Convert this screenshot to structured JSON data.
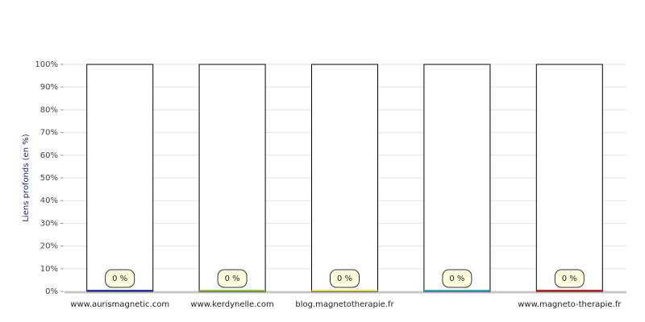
{
  "chart_data": {
    "type": "bar",
    "y_label": "Liens profonds (en %)",
    "categories": [
      "www.aurismagnetic.com",
      "www.kerdynelle.com",
      "blog.magnetotherapie.fr",
      null,
      "www.magneto-therapie.fr"
    ],
    "values": [
      0,
      0,
      0,
      0,
      0
    ],
    "value_labels": [
      "0 %",
      "0 %",
      "0 %",
      "0 %",
      "0 %"
    ],
    "colors": [
      "#1f3fa8",
      "#8fbf3f",
      "#e8d84a",
      "#2aa8c8",
      "#d01818"
    ],
    "ylim": [
      0,
      100
    ],
    "yticks": [
      {
        "value": 0,
        "label": "0%"
      },
      {
        "value": 10,
        "label": "10%"
      },
      {
        "value": 20,
        "label": "20%"
      },
      {
        "value": 30,
        "label": "30%"
      },
      {
        "value": 40,
        "label": "40%"
      },
      {
        "value": 50,
        "label": "50%"
      },
      {
        "value": 60,
        "label": "60%"
      },
      {
        "value": 70,
        "label": "70%"
      },
      {
        "value": 80,
        "label": "80%"
      },
      {
        "value": 90,
        "label": "90%"
      },
      {
        "value": 100,
        "label": "100%"
      }
    ],
    "grid": true
  }
}
